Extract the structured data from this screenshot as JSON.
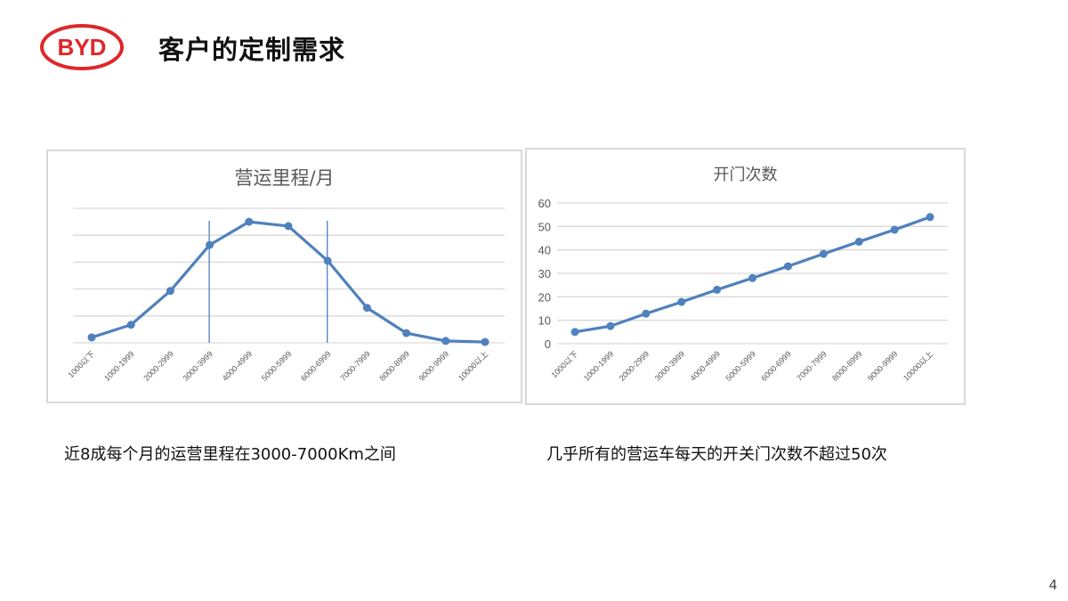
{
  "header": {
    "title": "客户的定制需求",
    "logo_text": "BYD"
  },
  "colors": {
    "series": "#4f81bd",
    "grid": "#d9d9d9",
    "logo": "#e0262a"
  },
  "chart_data": [
    {
      "type": "line",
      "title": "营运里程/月",
      "categories": [
        "1000以下",
        "1000-1999",
        "2000-2999",
        "3000-3999",
        "4000-4999",
        "5000-5999",
        "6000-6999",
        "7000-7999",
        "8000-8999",
        "9000-9999",
        "10000以上"
      ],
      "values": [
        0.2,
        0.67,
        1.93,
        3.64,
        4.5,
        4.34,
        3.05,
        1.3,
        0.36,
        0.07,
        0.03
      ],
      "ylim": [
        0,
        5
      ],
      "yticks_shown": false,
      "grid": true,
      "marker_lines_at": [
        "3000-3999",
        "6000-6999"
      ]
    },
    {
      "type": "line",
      "title": "开门次数",
      "categories": [
        "1000以下",
        "1000-1999",
        "2000-2999",
        "3000-3999",
        "4000-4999",
        "5000-5999",
        "6000-6999",
        "7000-7999",
        "8000-8999",
        "9000-9999",
        "10000以上"
      ],
      "values": [
        5,
        7.5,
        12.8,
        17.8,
        23,
        28,
        33,
        38.3,
        43.5,
        48.6,
        54
      ],
      "ylim": [
        0,
        60
      ],
      "yticks": [
        "0",
        "10",
        "20",
        "30",
        "40",
        "50",
        "60"
      ],
      "grid": true
    }
  ],
  "captions": {
    "left": "近8成每个月的运营里程在3000-7000Km之间",
    "right": "几乎所有的营运车每天的开关门次数不超过50次"
  },
  "page_number": "4"
}
